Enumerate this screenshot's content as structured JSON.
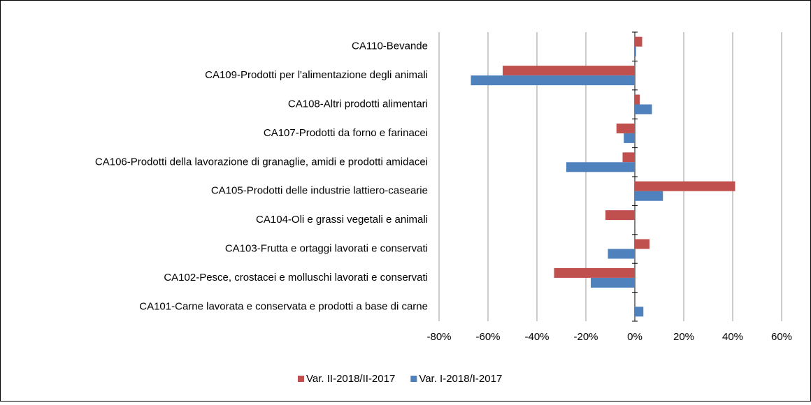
{
  "chart_data": {
    "type": "barh",
    "categories": [
      "CA110-Bevande",
      "CA109-Prodotti per l'alimentazione degli animali",
      "CA108-Altri prodotti alimentari",
      "CA107-Prodotti da forno e farinacei",
      "CA106-Prodotti della lavorazione di granaglie, amidi e prodotti amidacei",
      "CA105-Prodotti delle industrie lattiero-casearie",
      "CA104-Oli e grassi vegetali e animali",
      "CA103-Frutta e ortaggi lavorati e conservati",
      "CA102-Pesce, crostacei e molluschi lavorati e conservati",
      "CA101-Carne lavorata e conservata e prodotti a base di carne"
    ],
    "series": [
      {
        "name": "Var. II-2018/II-2017",
        "color": "#c0504d",
        "values": [
          3,
          -54,
          2,
          -7.5,
          -5,
          41,
          -12,
          6,
          -33,
          0
        ]
      },
      {
        "name": "Var. I-2018/I-2017",
        "color": "#4f81bd",
        "values": [
          0.5,
          -67,
          7,
          -4.5,
          -28,
          11.5,
          0,
          -11,
          -18,
          3.5
        ]
      }
    ],
    "xlim": [
      -80,
      60
    ],
    "xticks": [
      {
        "value": -80,
        "label": "-80%"
      },
      {
        "value": -60,
        "label": "-60%"
      },
      {
        "value": -40,
        "label": "-40%"
      },
      {
        "value": -20,
        "label": "-20%"
      },
      {
        "value": 0,
        "label": "0%"
      },
      {
        "value": 20,
        "label": "20%"
      },
      {
        "value": 40,
        "label": "40%"
      },
      {
        "value": 60,
        "label": "60%"
      }
    ],
    "grid": true,
    "legend": "bottom"
  }
}
